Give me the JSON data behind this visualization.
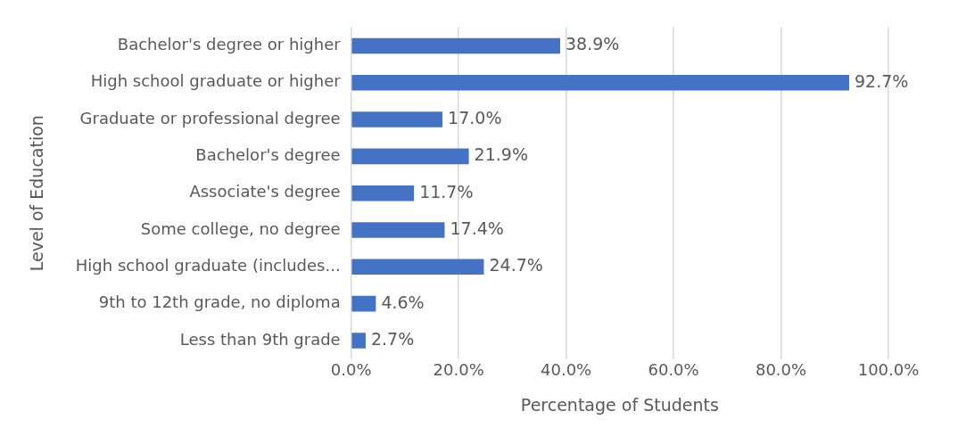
{
  "chart_data": {
    "type": "bar",
    "orientation": "horizontal",
    "xlabel": "Percentage of Students",
    "ylabel": "Level of Education",
    "categories": [
      "Bachelor's degree or higher",
      "High school graduate or higher",
      "Graduate or professional degree",
      "Bachelor's degree",
      "Associate's degree",
      "Some college, no degree",
      "High school graduate (includes...",
      "9th to 12th grade, no diploma",
      "Less than 9th grade"
    ],
    "values": [
      38.9,
      92.7,
      17.0,
      21.9,
      11.7,
      17.4,
      24.7,
      4.6,
      2.7
    ],
    "value_labels": [
      "38.9%",
      "92.7%",
      "17.0%",
      "21.9%",
      "11.7%",
      "17.4%",
      "24.7%",
      "4.6%",
      "2.7%"
    ],
    "color": "#4472c4",
    "xlim": [
      0,
      100
    ],
    "xticks": [
      {
        "value": 0,
        "label": "0.0%"
      },
      {
        "value": 20,
        "label": "20.0%"
      },
      {
        "value": 40,
        "label": "40.0%"
      },
      {
        "value": 60,
        "label": "60.0%"
      },
      {
        "value": 80,
        "label": "80.0%"
      },
      {
        "value": 100,
        "label": "100.0%"
      }
    ],
    "grid": "x",
    "legend": false
  }
}
